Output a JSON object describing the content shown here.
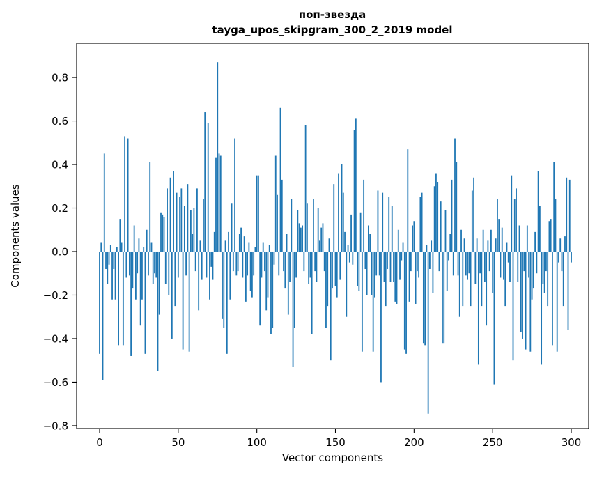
{
  "chart_data": {
    "type": "bar",
    "title_line1": "поп-звезда",
    "title_line2": "tayga_upos_skipgram_300_2_2019 model",
    "title": "поп-звезда\ntayga_upos_skipgram_300_2_2019 model",
    "xlabel": "Vector components",
    "ylabel": "Components values",
    "bar_color": "#1f77b4",
    "legend": "none",
    "grid": false,
    "x_ticks": [
      0,
      50,
      100,
      150,
      200,
      250,
      300
    ],
    "y_ticks": [
      -0.8,
      -0.6,
      -0.4,
      -0.2,
      0.0,
      0.2,
      0.4,
      0.6,
      0.8
    ],
    "xlim": [
      -16,
      315
    ],
    "ylim": [
      -0.813,
      0.957
    ],
    "n_bars": 301,
    "values": [
      -0.47,
      0.04,
      -0.59,
      0.45,
      -0.08,
      -0.15,
      -0.06,
      0.03,
      -0.22,
      -0.08,
      -0.22,
      0.02,
      -0.43,
      0.15,
      0.04,
      -0.43,
      0.53,
      -0.12,
      0.52,
      -0.11,
      -0.48,
      -0.17,
      0.12,
      -0.22,
      -0.1,
      0.06,
      -0.34,
      -0.22,
      0.02,
      -0.47,
      0.1,
      -0.11,
      0.41,
      0.04,
      -0.15,
      -0.1,
      -0.12,
      -0.55,
      -0.29,
      0.18,
      0.17,
      0.16,
      -0.15,
      0.29,
      -0.2,
      0.34,
      -0.4,
      0.37,
      -0.25,
      0.27,
      -0.12,
      0.25,
      0.29,
      -0.45,
      0.21,
      -0.11,
      0.31,
      -0.46,
      0.19,
      0.08,
      0.2,
      -0.09,
      0.29,
      -0.27,
      0.05,
      -0.13,
      0.24,
      0.64,
      -0.12,
      0.59,
      -0.22,
      -0.07,
      -0.13,
      0.09,
      0.43,
      0.87,
      0.45,
      0.44,
      -0.31,
      -0.35,
      0.05,
      -0.47,
      0.09,
      -0.22,
      0.22,
      -0.09,
      0.52,
      -0.11,
      -0.09,
      0.08,
      0.11,
      -0.12,
      0.07,
      -0.23,
      -0.11,
      0.04,
      -0.18,
      -0.21,
      -0.11,
      0.02,
      0.35,
      0.35,
      -0.34,
      -0.12,
      0.04,
      -0.09,
      -0.27,
      -0.21,
      0.03,
      -0.38,
      -0.35,
      -0.06,
      0.44,
      0.26,
      -0.11,
      0.66,
      0.33,
      -0.09,
      -0.17,
      0.08,
      -0.29,
      -0.14,
      0.24,
      -0.53,
      -0.35,
      -0.12,
      0.19,
      0.13,
      0.11,
      0.12,
      -0.09,
      0.58,
      0.22,
      -0.15,
      -0.12,
      -0.38,
      0.24,
      -0.09,
      -0.14,
      0.2,
      0.05,
      0.11,
      0.13,
      -0.09,
      -0.35,
      -0.25,
      0.06,
      -0.5,
      -0.17,
      0.31,
      -0.16,
      -0.21,
      0.36,
      -0.13,
      0.4,
      0.27,
      0.09,
      -0.3,
      0.03,
      -0.05,
      0.17,
      -0.06,
      0.56,
      0.61,
      -0.16,
      -0.18,
      0.18,
      -0.46,
      0.33,
      -0.08,
      -0.2,
      0.12,
      0.08,
      -0.2,
      -0.46,
      -0.21,
      -0.11,
      0.28,
      -0.11,
      -0.6,
      0.27,
      -0.14,
      -0.25,
      -0.08,
      0.25,
      -0.14,
      0.21,
      -0.14,
      -0.23,
      -0.24,
      0.1,
      -0.13,
      -0.04,
      0.04,
      -0.45,
      -0.47,
      0.47,
      -0.23,
      -0.09,
      0.12,
      0.14,
      -0.24,
      -0.09,
      -0.12,
      0.25,
      0.27,
      -0.42,
      -0.43,
      0.03,
      -0.745,
      -0.08,
      0.05,
      -0.19,
      0.3,
      0.36,
      0.32,
      -0.09,
      0.23,
      -0.42,
      -0.42,
      0.19,
      -0.18,
      -0.04,
      0.08,
      0.33,
      -0.11,
      0.52,
      0.41,
      -0.11,
      -0.3,
      0.1,
      -0.25,
      0.06,
      -0.11,
      -0.13,
      -0.1,
      -0.25,
      0.28,
      0.34,
      -0.15,
      0.06,
      -0.52,
      -0.1,
      -0.25,
      0.1,
      -0.14,
      -0.34,
      0.05,
      -0.09,
      0.1,
      -0.19,
      -0.61,
      0.06,
      0.24,
      0.15,
      -0.12,
      0.11,
      -0.13,
      -0.25,
      0.04,
      -0.05,
      -0.14,
      0.35,
      -0.5,
      0.24,
      0.29,
      -0.14,
      0.12,
      -0.37,
      -0.4,
      -0.09,
      -0.45,
      0.12,
      -0.12,
      -0.46,
      -0.22,
      -0.17,
      0.09,
      -0.1,
      0.37,
      0.21,
      -0.52,
      -0.15,
      -0.19,
      -0.09,
      -0.25,
      0.14,
      0.15,
      -0.43,
      0.41,
      0.24,
      -0.46,
      -0.05,
      0.06,
      -0.09,
      -0.25,
      0.07,
      0.34,
      -0.36,
      0.33,
      -0.05
    ]
  }
}
